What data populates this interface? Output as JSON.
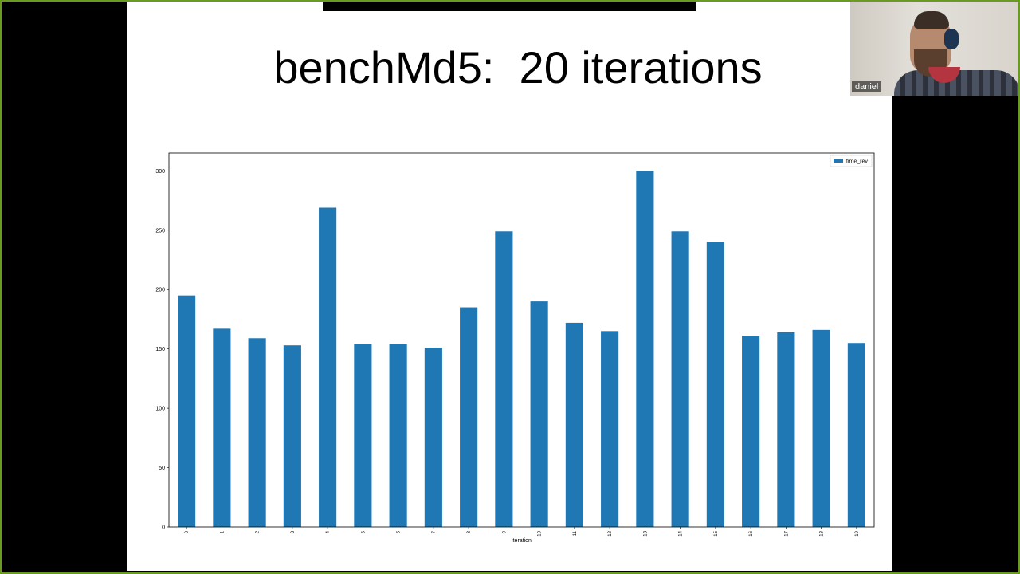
{
  "slide": {
    "title": "benchMd5:  20 iterations"
  },
  "webcam": {
    "participant_name": "daniel"
  },
  "colors": {
    "bar": "#1f77b4",
    "slide_background": "#ffffff",
    "frame_accent": "#6a9a1f"
  },
  "chart_data": {
    "type": "bar",
    "categories": [
      "0",
      "1",
      "2",
      "3",
      "4",
      "5",
      "6",
      "7",
      "8",
      "9",
      "10",
      "11",
      "12",
      "13",
      "14",
      "15",
      "16",
      "17",
      "18",
      "19"
    ],
    "series": [
      {
        "name": "time_rev",
        "values": [
          195,
          167,
          159,
          153,
          269,
          154,
          154,
          151,
          185,
          249,
          190,
          172,
          165,
          300,
          249,
          240,
          161,
          164,
          166,
          155
        ]
      }
    ],
    "xlabel": "iteration",
    "ylabel": "",
    "ylim": [
      0,
      315
    ],
    "yticks": [
      0,
      50,
      100,
      150,
      200,
      250,
      300
    ],
    "grid": false,
    "legend": "top-right"
  }
}
